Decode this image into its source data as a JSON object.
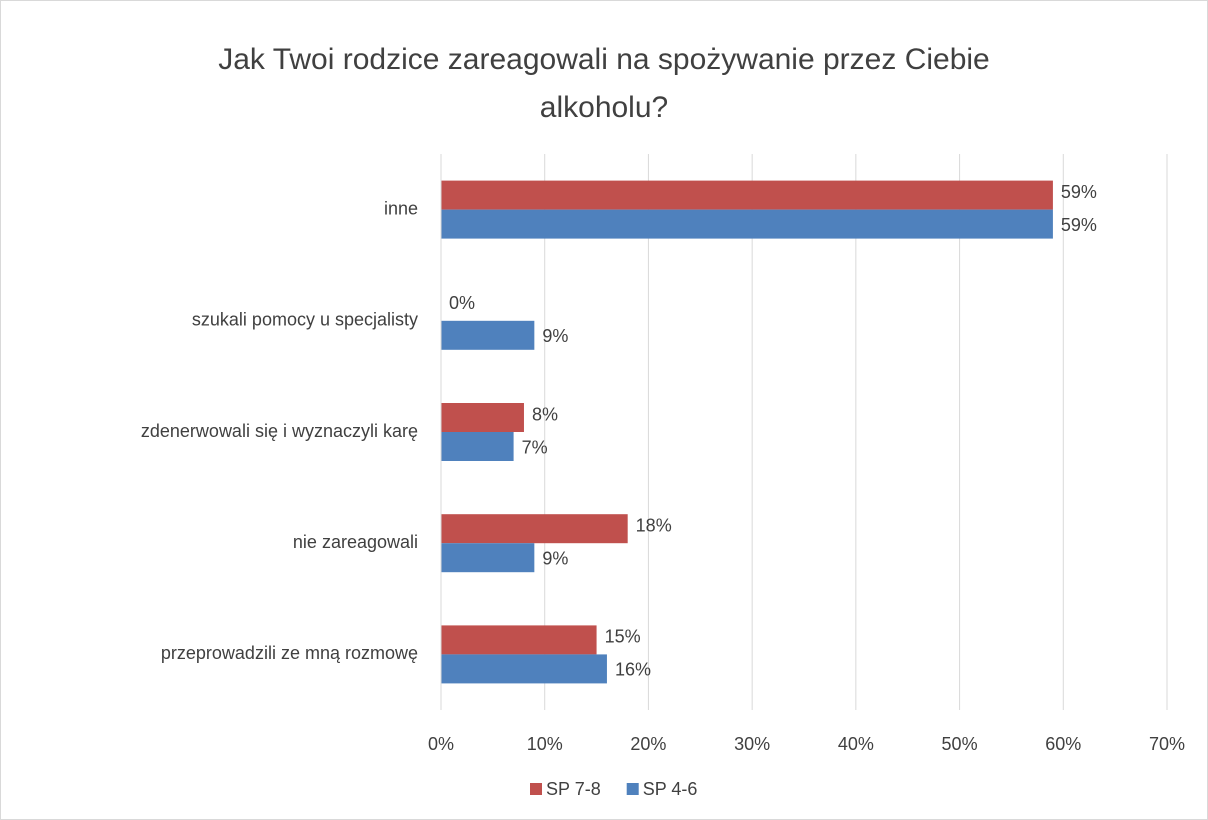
{
  "chart_data": {
    "type": "bar",
    "orientation": "horizontal",
    "title": "Jak Twoi rodzice zareagowali na spożywanie przez Ciebie alkoholu?",
    "categories": [
      "inne",
      "szukali pomocy u specjalisty",
      "zdenerwowali się i wyznaczyli karę",
      "nie zareagowali",
      "przeprowadzili ze mną rozmowę"
    ],
    "series": [
      {
        "name": "SP 7-8",
        "color": "#c0504d",
        "values": [
          59,
          0,
          8,
          18,
          15
        ],
        "value_labels": [
          "59%",
          "0%",
          "8%",
          "18%",
          "15%"
        ]
      },
      {
        "name": "SP 4-6",
        "color": "#4f81bd",
        "values": [
          59,
          9,
          7,
          9,
          16
        ],
        "value_labels": [
          "59%",
          "9%",
          "7%",
          "9%",
          "16%"
        ]
      }
    ],
    "xlim": [
      0,
      70
    ],
    "xticks": [
      {
        "value": 0,
        "label": "0%"
      },
      {
        "value": 10,
        "label": "10%"
      },
      {
        "value": 20,
        "label": "20%"
      },
      {
        "value": 30,
        "label": "30%"
      },
      {
        "value": 40,
        "label": "40%"
      },
      {
        "value": 50,
        "label": "50%"
      },
      {
        "value": 60,
        "label": "60%"
      },
      {
        "value": 70,
        "label": "70%"
      }
    ],
    "grid": true,
    "legend": "bottom"
  }
}
